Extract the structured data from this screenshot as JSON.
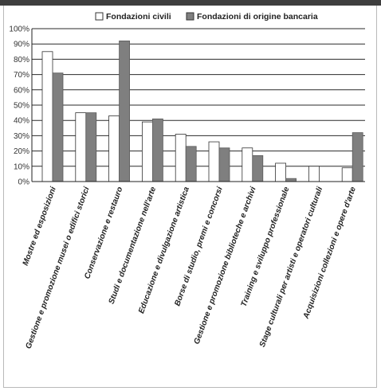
{
  "chart_data": {
    "type": "bar",
    "categories": [
      "Mostre ed esposizioni",
      "Gestione e promozione musei o edifici storici",
      "Conservazione e restauro",
      "Studi e documentazione nell'arte",
      "Educazione e divulgazione artistica",
      "Borse di studio, premi e concorsi",
      "Gestione e promozione biblioteche e archivi",
      "Training e sviluppo professionale",
      "Stage culturali per artisti e operatori culturali",
      "Acquisizioni collezioni e opere d'arte"
    ],
    "series": [
      {
        "name": "Fondazioni civili",
        "color": "#ffffff",
        "values": [
          85,
          45,
          43,
          39,
          31,
          26,
          22,
          12,
          10,
          9
        ]
      },
      {
        "name": "Fondazioni di origine bancaria",
        "color": "#7f7f7f",
        "values": [
          71,
          45,
          92,
          41,
          23,
          22,
          17,
          2,
          0,
          32
        ]
      }
    ],
    "yticks": [
      "0%",
      "10%",
      "20%",
      "30%",
      "40%",
      "50%",
      "60%",
      "70%",
      "80%",
      "90%",
      "100%"
    ],
    "ylim": [
      0,
      100
    ],
    "grid": true,
    "legend_position": "top-center"
  }
}
